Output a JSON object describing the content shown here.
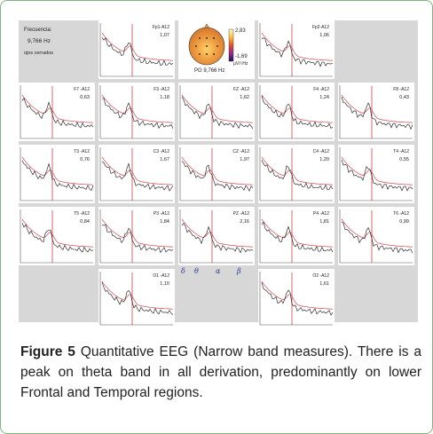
{
  "info": {
    "frequency_label": "Frecuencia:",
    "frequency_value": "9,766 Hz",
    "condition": "ojos cerrados"
  },
  "topomap": {
    "scale_max": "2,83",
    "scale_min": "-1,69",
    "unit": "μV/√Hz",
    "title": "PG 9,766 Hz"
  },
  "bands": {
    "delta": "δ",
    "theta": "θ",
    "alpha": "α",
    "beta": "β"
  },
  "panels": [
    {
      "label": "Fp1-A12",
      "value": "1,07"
    },
    {
      "label": "Fp2-A12",
      "value": "1,06"
    },
    {
      "label": "F7 -A12",
      "value": "0,63"
    },
    {
      "label": "F3 -A12",
      "value": "1,18"
    },
    {
      "label": "FZ -A12",
      "value": "1,62"
    },
    {
      "label": "F4 -A12",
      "value": "1,24"
    },
    {
      "label": "F8 -A12",
      "value": "0,43"
    },
    {
      "label": "T3 -A12",
      "value": "0,76"
    },
    {
      "label": "C3 -A12",
      "value": "1,67"
    },
    {
      "label": "CZ -A12",
      "value": "1,97"
    },
    {
      "label": "C4 -A12",
      "value": "1,20"
    },
    {
      "label": "T4 -A12",
      "value": "0,55"
    },
    {
      "label": "T5 -A12",
      "value": "0,84"
    },
    {
      "label": "P3 -A12",
      "value": "1,84"
    },
    {
      "label": "PZ -A12",
      "value": "2,16"
    },
    {
      "label": "P4 -A12",
      "value": "1,81"
    },
    {
      "label": "T6 -A12",
      "value": "0,99"
    },
    {
      "label": "O1 -A12",
      "value": "1,10"
    },
    {
      "label": "O2 -A12",
      "value": "1,61"
    }
  ],
  "colors": {
    "marker": "#c0282d",
    "norm_curve": "#d2464b",
    "patient_curve": "#111111",
    "frame": "#7fb57f"
  },
  "caption": {
    "figure_label": "Figure 5",
    "text": "Quantitative EEG (Narrow band measures). There is a peak on theta band in all derivation, predominantly on lower Frontal and Temporal regions."
  }
}
